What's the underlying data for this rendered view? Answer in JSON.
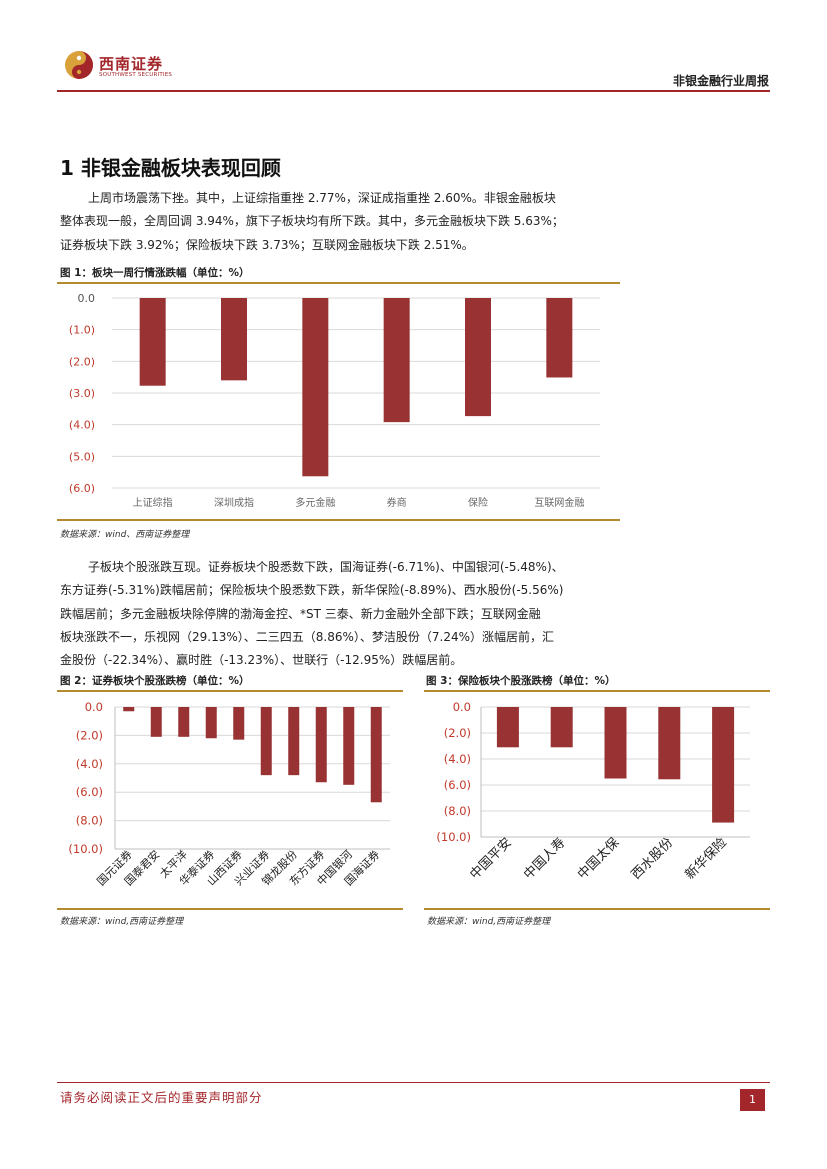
{
  "header": {
    "logo_cn": "西南证券",
    "logo_en": "SOUTHWEST SECURITIES",
    "report_title": "非银金融行业周报"
  },
  "section": {
    "heading": "1 非银金融板块表现回顾"
  },
  "paragraph1": {
    "lines": [
      "上周市场震荡下挫。其中，上证综指重挫 2.77%，深证成指重挫 2.60%。非银金融板块",
      "整体表现一般，全周回调 3.94%，旗下子板块均有所下跌。其中，多元金融板块下跌 5.63%；",
      "证券板块下跌 3.92%；保险板块下跌 3.73%；互联网金融板块下跌 2.51%。"
    ]
  },
  "paragraph2": {
    "lines": [
      "子板块个股涨跌互现。证券板块个股悉数下跌，国海证券(-6.71%)、中国银河(-5.48%)、",
      "东方证券(-5.31%)跌幅居前；保险板块个股悉数下跌，新华保险(-8.89%)、西水股份(-5.56%)",
      "跌幅居前；多元金融板块除停牌的渤海金控、*ST 三泰、新力金融外全部下跌；互联网金融",
      "板块涨跌不一，乐视网（29.13%）、二三四五（8.86%）、梦洁股份（7.24%）涨幅居前，汇",
      "金股份（-22.34%）、赢时胜（-13.23%）、世联行（-12.95%）跌幅居前。"
    ]
  },
  "figure1": {
    "title": "图 1：板块一周行情涨跌幅（单位：%）",
    "source": "数据来源：wind、西南证券整理"
  },
  "figure2": {
    "title": "图 2：证券板块个股涨跌榜（单位：%）",
    "source": "数据来源：wind,西南证券整理"
  },
  "figure3": {
    "title": "图 3：保险板块个股涨跌榜（单位：%）",
    "source": "数据来源：wind,西南证券整理"
  },
  "footer": {
    "disclaimer": "请务必阅读正文后的重要声明部分",
    "page_number": "1"
  },
  "colors": {
    "bar": "#983233",
    "accent": "#a3262a",
    "axis_label": "#c0392b",
    "figure_rule": "#b58a2e"
  },
  "chart_data": [
    {
      "id": "fig1",
      "type": "bar",
      "categories": [
        "上证综指",
        "深圳成指",
        "多元金融",
        "券商",
        "保险",
        "互联网金融"
      ],
      "values": [
        -2.77,
        -2.6,
        -5.63,
        -3.92,
        -3.73,
        -2.51
      ],
      "ylim": [
        -6.0,
        0.0
      ],
      "yticks": [
        0.0,
        -1.0,
        -2.0,
        -3.0,
        -4.0,
        -5.0,
        -6.0
      ],
      "ytick_labels": [
        "0.0",
        "(1.0)",
        "(2.0)",
        "(3.0)",
        "(4.0)",
        "(5.0)",
        "(6.0)"
      ],
      "xlabel": "",
      "ylabel": "",
      "grid": true
    },
    {
      "id": "fig2",
      "type": "bar",
      "categories": [
        "国元证券",
        "国泰君安",
        "太平洋",
        "华泰证券",
        "山西证券",
        "兴业证券",
        "锦龙股份",
        "东方证券",
        "中国银河",
        "国海证券"
      ],
      "values": [
        -0.3,
        -2.1,
        -2.1,
        -2.2,
        -2.3,
        -4.8,
        -4.8,
        -5.3,
        -5.48,
        -6.71
      ],
      "ylim": [
        -10.0,
        0.0
      ],
      "yticks": [
        0.0,
        -2.0,
        -4.0,
        -6.0,
        -8.0,
        -10.0
      ],
      "ytick_labels": [
        "0.0",
        "(2.0)",
        "(4.0)",
        "(6.0)",
        "(8.0)",
        "(10.0)"
      ],
      "xlabel": "",
      "ylabel": "",
      "grid": true
    },
    {
      "id": "fig3",
      "type": "bar",
      "categories": [
        "中国平安",
        "中国人寿",
        "中国太保",
        "西水股份",
        "新华保险"
      ],
      "values": [
        -3.1,
        -3.1,
        -5.5,
        -5.56,
        -8.89
      ],
      "ylim": [
        -10.0,
        0.0
      ],
      "yticks": [
        0.0,
        -2.0,
        -4.0,
        -6.0,
        -8.0,
        -10.0
      ],
      "ytick_labels": [
        "0.0",
        "(2.0)",
        "(4.0)",
        "(6.0)",
        "(8.0)",
        "(10.0)"
      ],
      "xlabel": "",
      "ylabel": "",
      "grid": true
    }
  ]
}
